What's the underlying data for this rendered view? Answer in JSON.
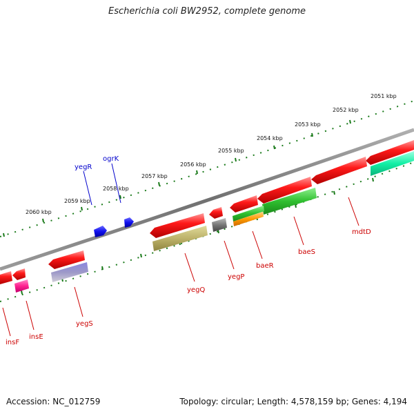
{
  "title": "Escherichia coli BW2952, complete genome",
  "footer": {
    "accession_label": "Accession:",
    "accession": "NC_012759",
    "topology_text": "Topology: circular; Length: 4,578,159 bp; Genes: 4,194"
  },
  "colors": {
    "backbone": "#808080",
    "forward_gene": "#ff0000",
    "reverse_gene": "#ff0000",
    "label_red": "#cc0000",
    "label_blue": "#0000cc",
    "tick_green": "#1a7a1a"
  },
  "scale_labels": [
    {
      "text": "2051 kbp"
    },
    {
      "text": "2052 kbp"
    },
    {
      "text": "2053 kbp"
    },
    {
      "text": "2054 kbp"
    },
    {
      "text": "2055 kbp"
    },
    {
      "text": "2056 kbp"
    },
    {
      "text": "2057 kbp"
    },
    {
      "text": "2058 kbp"
    },
    {
      "text": "2059 kbp"
    },
    {
      "text": "2060 kbp"
    }
  ],
  "genes": [
    {
      "name": "mdtD",
      "color": "#cc0000"
    },
    {
      "name": "baeS",
      "color": "#cc0000"
    },
    {
      "name": "baeR",
      "color": "#cc0000"
    },
    {
      "name": "yegP",
      "color": "#cc0000"
    },
    {
      "name": "yegQ",
      "color": "#cc0000"
    },
    {
      "name": "ogrK",
      "color": "#0000cc"
    },
    {
      "name": "yegR",
      "color": "#0000cc"
    },
    {
      "name": "yegS",
      "color": "#cc0000"
    },
    {
      "name": "insE",
      "color": "#cc0000"
    },
    {
      "name": "insF",
      "color": "#cc0000"
    }
  ]
}
